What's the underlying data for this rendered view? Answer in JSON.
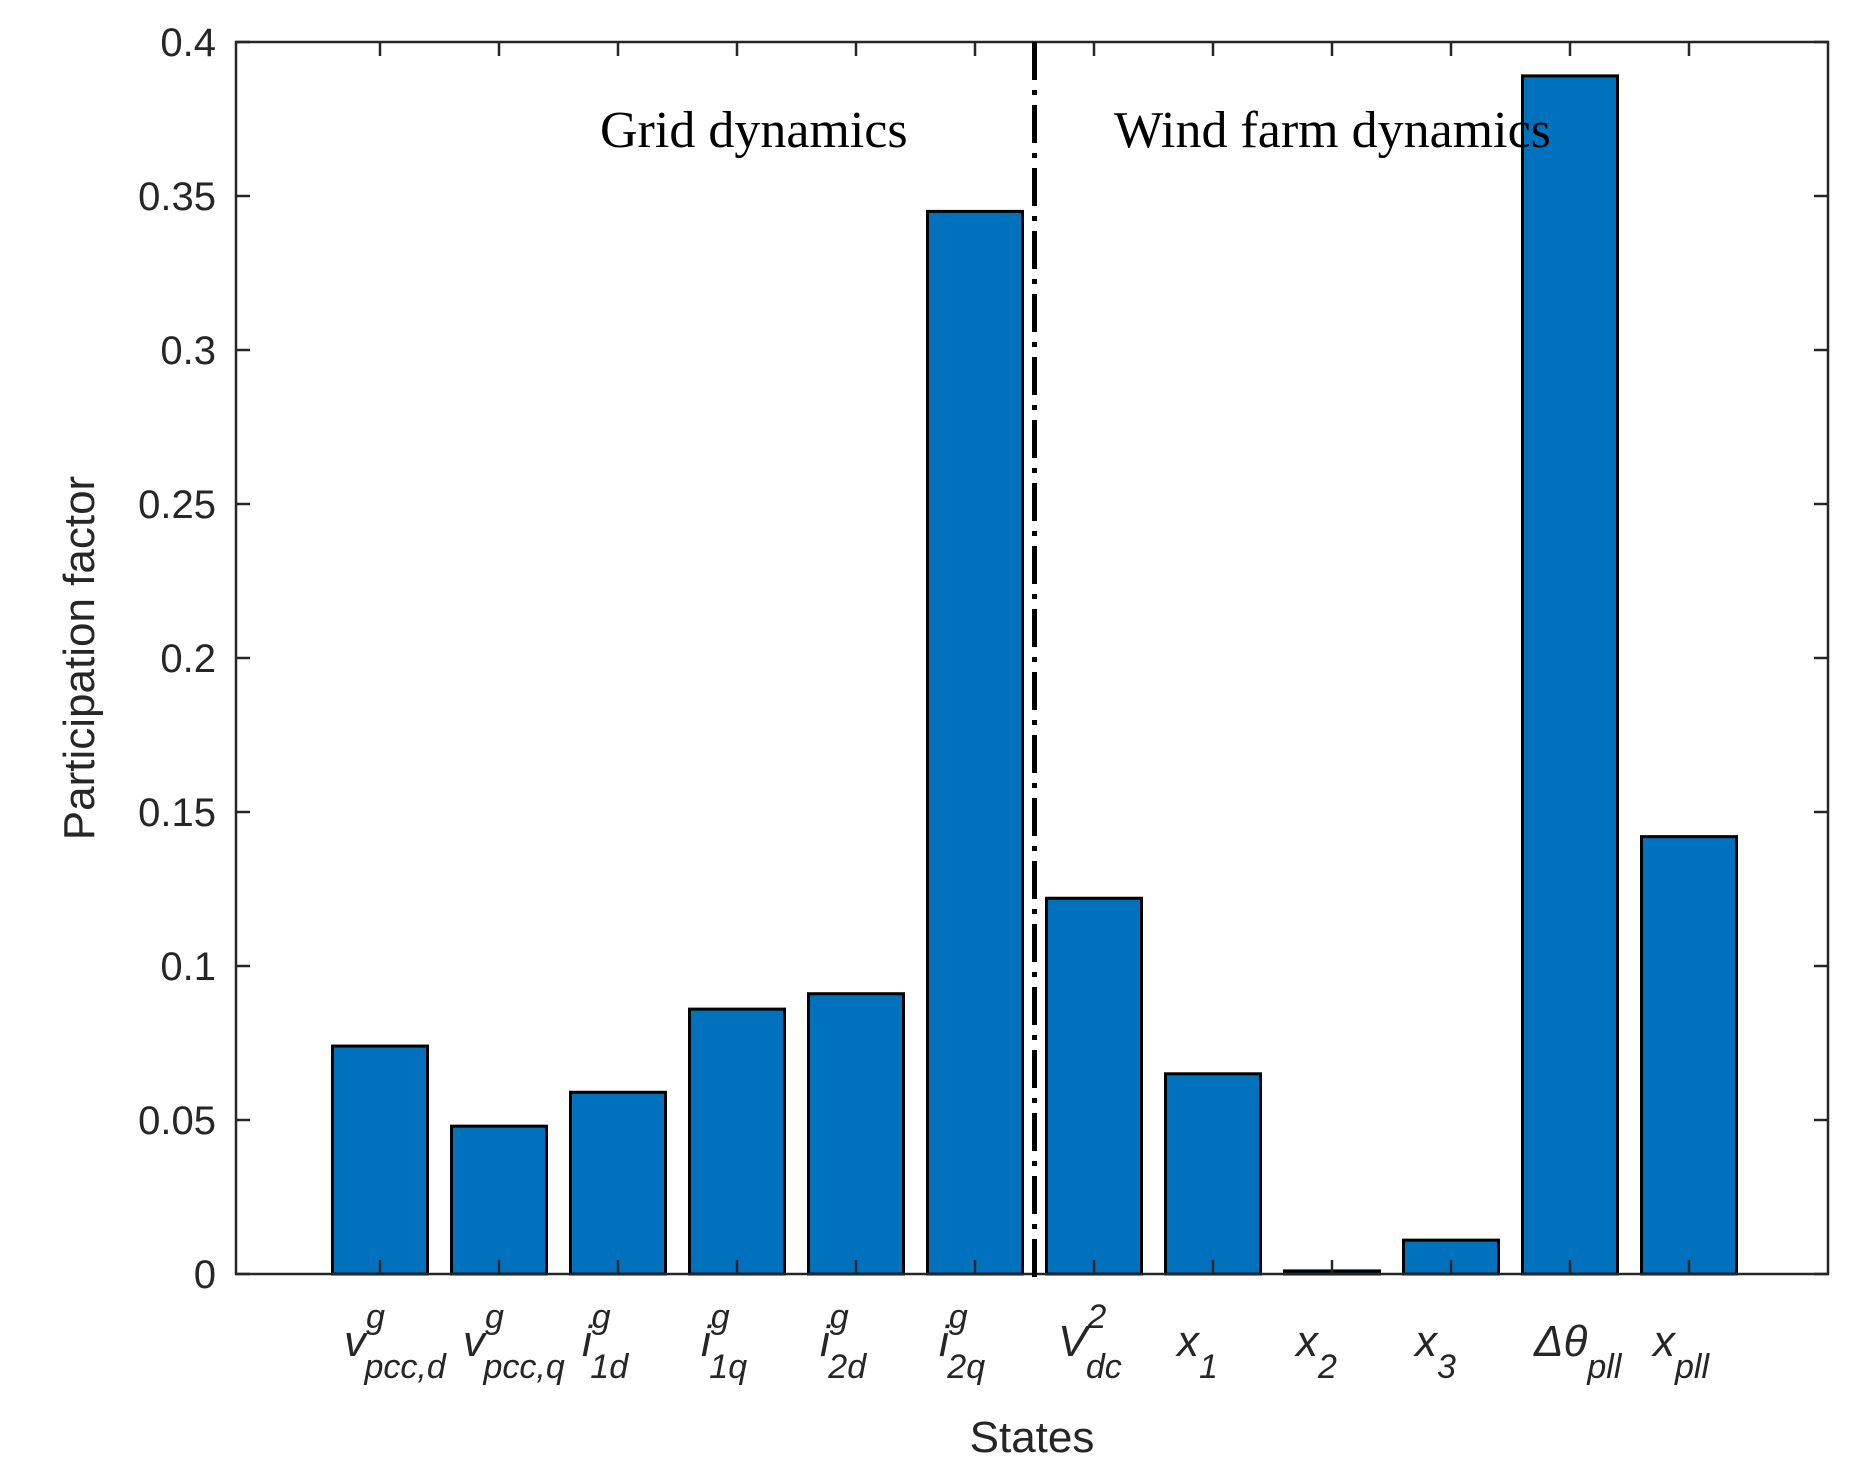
{
  "chart_data": {
    "type": "bar",
    "xlabel": "States",
    "ylabel": "Participation factor",
    "ylim": [
      0,
      0.4
    ],
    "yticks": [
      "0",
      "0.05",
      "0.1",
      "0.15",
      "0.2",
      "0.25",
      "0.3",
      "0.35",
      "0.4"
    ],
    "bar_color": "#0072BD",
    "categories": [
      {
        "base": "v",
        "sup": "g",
        "sub": "pcc,d"
      },
      {
        "base": "v",
        "sup": "g",
        "sub": "pcc,q"
      },
      {
        "base": "i",
        "sup": "g",
        "sub": "1d"
      },
      {
        "base": "i",
        "sup": "g",
        "sub": "1q"
      },
      {
        "base": "i",
        "sup": "g",
        "sub": "2d"
      },
      {
        "base": "i",
        "sup": "g",
        "sub": "2q"
      },
      {
        "base": "V",
        "sup": "2",
        "sub": "dc"
      },
      {
        "base": "x",
        "sup": "",
        "sub": "1"
      },
      {
        "base": "x",
        "sup": "",
        "sub": "2"
      },
      {
        "base": "x",
        "sup": "",
        "sub": "3"
      },
      {
        "base": "Δθ",
        "sup": "",
        "sub": "pll"
      },
      {
        "base": "x",
        "sup": "",
        "sub": "pll"
      }
    ],
    "values": [
      0.074,
      0.048,
      0.059,
      0.086,
      0.091,
      0.345,
      0.122,
      0.065,
      0.001,
      0.011,
      0.389,
      0.142
    ],
    "annotations": [
      "Grid dynamics",
      "Wind farm dynamics"
    ],
    "divider_after_category_index": 5
  }
}
